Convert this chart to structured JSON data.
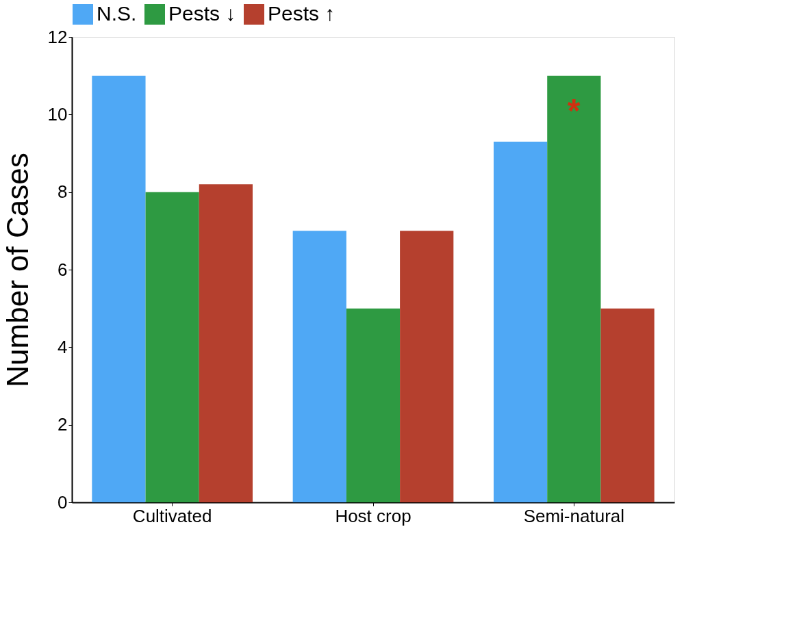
{
  "chart_data": {
    "type": "bar",
    "ylabel": "Number of Cases",
    "categories": [
      "Cultivated",
      "Host crop",
      "Semi-natural"
    ],
    "series": [
      {
        "name": "N.S.",
        "color": "#4fa8f5",
        "values": [
          11,
          7,
          9.3
        ]
      },
      {
        "name": "Pests ↓",
        "color": "#2e9a42",
        "values": [
          8,
          5,
          11
        ]
      },
      {
        "name": "Pests ↑",
        "color": "#b5402e",
        "values": [
          8.2,
          7,
          5
        ]
      }
    ],
    "ylim": [
      0,
      12
    ],
    "yticks": [
      0,
      2,
      4,
      6,
      8,
      10,
      12
    ],
    "grid": false,
    "legend": "top",
    "annotations": [
      "*"
    ]
  }
}
